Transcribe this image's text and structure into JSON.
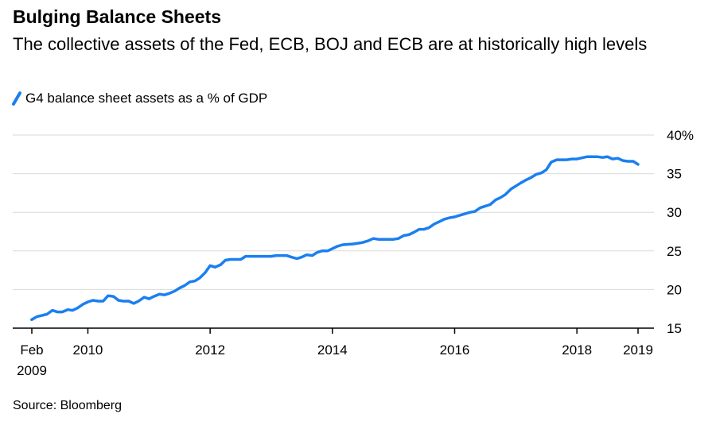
{
  "title": "Bulging Balance Sheets",
  "subtitle": "The collective assets of the Fed, ECB, BOJ and ECB are at historically high levels",
  "legend_label": "G4 balance sheet assets as a % of GDP",
  "source": "Source: Bloomberg",
  "colors": {
    "line": "#1a7ff0",
    "grid": "#d9d9d9",
    "axis": "#000000"
  },
  "chart_data": {
    "type": "line",
    "title": "Bulging Balance Sheets",
    "ylim": [
      15,
      40
    ],
    "y_ticks": [
      {
        "value": 40,
        "label": "40%"
      },
      {
        "value": 35,
        "label": "35"
      },
      {
        "value": 30,
        "label": "30"
      },
      {
        "value": 25,
        "label": "25"
      },
      {
        "value": 20,
        "label": "20"
      },
      {
        "value": 15,
        "label": "15"
      }
    ],
    "x_ticks": [
      {
        "value": 2009.083,
        "label": "Feb",
        "label2": "2009"
      },
      {
        "value": 2010,
        "label": "2010"
      },
      {
        "value": 2012,
        "label": "2012"
      },
      {
        "value": 2014,
        "label": "2014"
      },
      {
        "value": 2016,
        "label": "2016"
      },
      {
        "value": 2018,
        "label": "2018"
      },
      {
        "value": 2019,
        "label": "2019"
      }
    ],
    "grid": true,
    "legend": "top-left",
    "series": [
      {
        "name": "G4 balance sheet assets as a % of GDP",
        "points": [
          [
            2009.08,
            16.1
          ],
          [
            2009.17,
            16.5
          ],
          [
            2009.33,
            16.8
          ],
          [
            2009.42,
            17.3
          ],
          [
            2009.5,
            17.1
          ],
          [
            2009.58,
            17.1
          ],
          [
            2009.67,
            17.4
          ],
          [
            2009.75,
            17.3
          ],
          [
            2009.83,
            17.6
          ],
          [
            2009.92,
            18.1
          ],
          [
            2010.0,
            18.4
          ],
          [
            2010.08,
            18.6
          ],
          [
            2010.17,
            18.5
          ],
          [
            2010.25,
            18.5
          ],
          [
            2010.33,
            19.2
          ],
          [
            2010.42,
            19.1
          ],
          [
            2010.5,
            18.6
          ],
          [
            2010.58,
            18.5
          ],
          [
            2010.67,
            18.5
          ],
          [
            2010.75,
            18.2
          ],
          [
            2010.83,
            18.5
          ],
          [
            2010.92,
            19.0
          ],
          [
            2011.0,
            18.8
          ],
          [
            2011.08,
            19.1
          ],
          [
            2011.17,
            19.4
          ],
          [
            2011.25,
            19.3
          ],
          [
            2011.33,
            19.5
          ],
          [
            2011.42,
            19.8
          ],
          [
            2011.5,
            20.2
          ],
          [
            2011.58,
            20.5
          ],
          [
            2011.67,
            21.0
          ],
          [
            2011.75,
            21.1
          ],
          [
            2011.83,
            21.5
          ],
          [
            2011.92,
            22.2
          ],
          [
            2012.0,
            23.1
          ],
          [
            2012.08,
            22.9
          ],
          [
            2012.17,
            23.2
          ],
          [
            2012.25,
            23.8
          ],
          [
            2012.33,
            23.9
          ],
          [
            2012.5,
            23.9
          ],
          [
            2012.58,
            24.3
          ],
          [
            2012.75,
            24.3
          ],
          [
            2012.92,
            24.3
          ],
          [
            2013.0,
            24.3
          ],
          [
            2013.08,
            24.4
          ],
          [
            2013.25,
            24.4
          ],
          [
            2013.33,
            24.2
          ],
          [
            2013.42,
            24.0
          ],
          [
            2013.5,
            24.2
          ],
          [
            2013.58,
            24.5
          ],
          [
            2013.67,
            24.4
          ],
          [
            2013.75,
            24.8
          ],
          [
            2013.83,
            25.0
          ],
          [
            2013.92,
            25.0
          ],
          [
            2014.0,
            25.3
          ],
          [
            2014.08,
            25.6
          ],
          [
            2014.17,
            25.8
          ],
          [
            2014.33,
            25.9
          ],
          [
            2014.42,
            26.0
          ],
          [
            2014.5,
            26.1
          ],
          [
            2014.58,
            26.3
          ],
          [
            2014.67,
            26.6
          ],
          [
            2014.75,
            26.5
          ],
          [
            2014.92,
            26.5
          ],
          [
            2015.0,
            26.5
          ],
          [
            2015.08,
            26.6
          ],
          [
            2015.17,
            27.0
          ],
          [
            2015.25,
            27.1
          ],
          [
            2015.33,
            27.4
          ],
          [
            2015.42,
            27.8
          ],
          [
            2015.5,
            27.8
          ],
          [
            2015.58,
            28.0
          ],
          [
            2015.67,
            28.5
          ],
          [
            2015.75,
            28.8
          ],
          [
            2015.83,
            29.1
          ],
          [
            2015.92,
            29.3
          ],
          [
            2016.0,
            29.4
          ],
          [
            2016.08,
            29.6
          ],
          [
            2016.17,
            29.8
          ],
          [
            2016.25,
            30.0
          ],
          [
            2016.33,
            30.1
          ],
          [
            2016.42,
            30.6
          ],
          [
            2016.5,
            30.8
          ],
          [
            2016.58,
            31.0
          ],
          [
            2016.67,
            31.6
          ],
          [
            2016.75,
            31.9
          ],
          [
            2016.83,
            32.3
          ],
          [
            2016.92,
            33.0
          ],
          [
            2017.0,
            33.4
          ],
          [
            2017.08,
            33.8
          ],
          [
            2017.17,
            34.2
          ],
          [
            2017.25,
            34.5
          ],
          [
            2017.33,
            34.9
          ],
          [
            2017.42,
            35.1
          ],
          [
            2017.5,
            35.5
          ],
          [
            2017.58,
            36.5
          ],
          [
            2017.67,
            36.8
          ],
          [
            2017.83,
            36.8
          ],
          [
            2017.92,
            36.9
          ],
          [
            2018.0,
            36.9
          ],
          [
            2018.17,
            37.2
          ],
          [
            2018.33,
            37.2
          ],
          [
            2018.42,
            37.1
          ],
          [
            2018.5,
            37.2
          ],
          [
            2018.58,
            36.9
          ],
          [
            2018.67,
            37.0
          ],
          [
            2018.75,
            36.7
          ],
          [
            2018.83,
            36.6
          ],
          [
            2018.92,
            36.6
          ],
          [
            2019.0,
            36.2
          ]
        ]
      }
    ]
  }
}
